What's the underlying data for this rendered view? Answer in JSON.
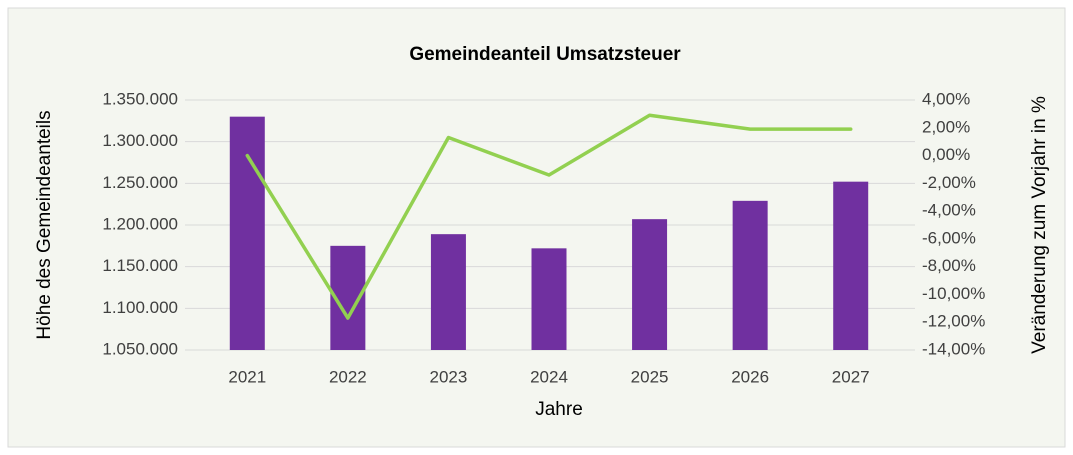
{
  "chart_data": {
    "type": "bar",
    "title": "Gemeindeanteil Umsatzsteuer",
    "x_label": "Jahre",
    "y_label": "Höhe des Gemeindeanteils",
    "y2_label": "Veränderung zum Vorjahr in %",
    "categories": [
      "2021",
      "2022",
      "2023",
      "2024",
      "2025",
      "2026",
      "2027"
    ],
    "series": [
      {
        "type": "bar",
        "color": "#7030a0",
        "values": [
          1330000,
          1175000,
          1189000,
          1172000,
          1207000,
          1229000,
          1252000
        ]
      },
      {
        "type": "line",
        "axis": "y2",
        "color": "#92d050",
        "values": [
          0,
          -11.7,
          1.3,
          -1.4,
          2.9,
          1.9,
          1.9
        ]
      }
    ],
    "ylim": [
      1050000,
      1350000
    ],
    "yticks": [
      {
        "value": 1050000,
        "label": "1.050.000"
      },
      {
        "value": 1100000,
        "label": "1.100.000"
      },
      {
        "value": 1150000,
        "label": "1.150.000"
      },
      {
        "value": 1200000,
        "label": "1.200.000"
      },
      {
        "value": 1250000,
        "label": "1.250.000"
      },
      {
        "value": 1300000,
        "label": "1.300.000"
      },
      {
        "value": 1350000,
        "label": "1.350.000"
      }
    ],
    "y2lim": [
      -14,
      4
    ],
    "y2ticks": [
      {
        "value": -14,
        "label": "-14,00%"
      },
      {
        "value": -12,
        "label": "-12,00%"
      },
      {
        "value": -10,
        "label": "-10,00%"
      },
      {
        "value": -8,
        "label": "-8,00%"
      },
      {
        "value": -6,
        "label": "-6,00%"
      },
      {
        "value": -4,
        "label": "-4,00%"
      },
      {
        "value": -2,
        "label": "-2,00%"
      },
      {
        "value": 0,
        "label": "0,00%"
      },
      {
        "value": 2,
        "label": "2,00%"
      },
      {
        "value": 4,
        "label": "4,00%"
      }
    ],
    "grid": true
  }
}
